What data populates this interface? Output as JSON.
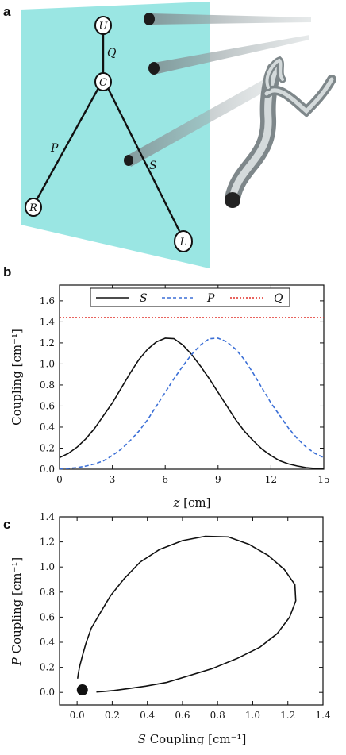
{
  "panels": {
    "a": "a",
    "b": "b",
    "c": "c"
  },
  "diagram": {
    "nodes": {
      "U": "U",
      "C": "C",
      "R": "R",
      "L": "L"
    },
    "edges": {
      "Q": "Q",
      "P": "P",
      "S": "S"
    },
    "colors": {
      "plane": "#8fe3e0",
      "waveguide": "#9aa3a6",
      "waveguide_end": "#222222"
    }
  },
  "chart_data": [
    {
      "type": "line",
      "panel": "b",
      "title": "",
      "xlabel_symbol": "z",
      "xlabel_unit": " [cm]",
      "ylabel": "Coupling [cm⁻¹]",
      "xlim": [
        0,
        15
      ],
      "ylim": [
        0,
        1.75
      ],
      "xticks": [
        0,
        3,
        6,
        9,
        12,
        15
      ],
      "xtick_labels": [
        "0",
        "3",
        "6",
        "9",
        "12",
        "15"
      ],
      "yticks": [
        0.0,
        0.2,
        0.4,
        0.6,
        0.8,
        1.0,
        1.2,
        1.4,
        1.6
      ],
      "ytick_labels": [
        "0.0",
        "0.2",
        "0.4",
        "0.6",
        "0.8",
        "1.0",
        "1.2",
        "1.4",
        "1.6"
      ],
      "legend_position": "top",
      "series": [
        {
          "name": "S",
          "style": "solid",
          "color": "#111111",
          "x": [
            0,
            0.5,
            1,
            1.5,
            2,
            2.5,
            3,
            3.5,
            4,
            4.5,
            5,
            5.5,
            6,
            6.5,
            7,
            7.5,
            8,
            8.5,
            9,
            9.5,
            10,
            10.5,
            11,
            11.5,
            12,
            12.5,
            13,
            13.5,
            14,
            14.5,
            15
          ],
          "y": [
            0.11,
            0.15,
            0.21,
            0.29,
            0.39,
            0.51,
            0.63,
            0.77,
            0.91,
            1.04,
            1.14,
            1.21,
            1.245,
            1.24,
            1.18,
            1.09,
            0.98,
            0.86,
            0.73,
            0.6,
            0.47,
            0.36,
            0.27,
            0.19,
            0.13,
            0.08,
            0.05,
            0.03,
            0.015,
            0.007,
            0.003
          ]
        },
        {
          "name": "P",
          "style": "dashed",
          "color": "#3b6fd6",
          "x": [
            0,
            0.5,
            1,
            1.5,
            2,
            2.5,
            3,
            3.5,
            4,
            4.5,
            5,
            5.5,
            6,
            6.5,
            7,
            7.5,
            8,
            8.5,
            9,
            9.5,
            10,
            10.5,
            11,
            11.5,
            12,
            12.5,
            13,
            13.5,
            14,
            14.5,
            15
          ],
          "y": [
            0.003,
            0.007,
            0.015,
            0.03,
            0.05,
            0.08,
            0.13,
            0.19,
            0.27,
            0.36,
            0.47,
            0.6,
            0.73,
            0.86,
            0.98,
            1.09,
            1.18,
            1.24,
            1.245,
            1.21,
            1.14,
            1.04,
            0.91,
            0.77,
            0.63,
            0.51,
            0.39,
            0.29,
            0.21,
            0.15,
            0.11
          ]
        },
        {
          "name": "Q",
          "style": "dotted",
          "color": "#e0302a",
          "x": [
            0,
            15
          ],
          "y": [
            1.44,
            1.44
          ]
        }
      ]
    },
    {
      "type": "line",
      "panel": "c",
      "title": "",
      "xlabel_symbol": "S",
      "xlabel_unit": " Coupling [cm⁻¹]",
      "ylabel_symbol": "P",
      "ylabel_unit": " Coupling [cm⁻¹]",
      "xlim": [
        -0.1,
        1.4
      ],
      "ylim": [
        -0.1,
        1.4
      ],
      "xticks": [
        0.0,
        0.2,
        0.4,
        0.6,
        0.8,
        1.0,
        1.2,
        1.4
      ],
      "xtick_labels": [
        "0.0",
        "0.2",
        "0.4",
        "0.6",
        "0.8",
        "1.0",
        "1.2",
        "1.4"
      ],
      "yticks": [
        0.0,
        0.2,
        0.4,
        0.6,
        0.8,
        1.0,
        1.2,
        1.4
      ],
      "ytick_labels": [
        "0.0",
        "0.2",
        "0.4",
        "0.6",
        "0.8",
        "1.0",
        "1.2",
        "1.4"
      ],
      "marker": {
        "x": 0.03,
        "y": 0.02
      },
      "series": [
        {
          "style": "solid",
          "color": "#111111",
          "x": [
            0.11,
            0.15,
            0.21,
            0.29,
            0.39,
            0.51,
            0.63,
            0.77,
            0.91,
            1.04,
            1.14,
            1.21,
            1.245,
            1.24,
            1.18,
            1.09,
            0.98,
            0.86,
            0.73,
            0.6,
            0.47,
            0.36,
            0.27,
            0.19,
            0.13,
            0.08,
            0.05,
            0.03,
            0.015,
            0.007,
            0.003
          ],
          "y": [
            0.003,
            0.007,
            0.015,
            0.03,
            0.05,
            0.08,
            0.13,
            0.19,
            0.27,
            0.36,
            0.47,
            0.6,
            0.73,
            0.86,
            0.98,
            1.09,
            1.18,
            1.24,
            1.245,
            1.21,
            1.14,
            1.04,
            0.91,
            0.77,
            0.63,
            0.51,
            0.39,
            0.29,
            0.21,
            0.15,
            0.11
          ]
        }
      ]
    }
  ]
}
